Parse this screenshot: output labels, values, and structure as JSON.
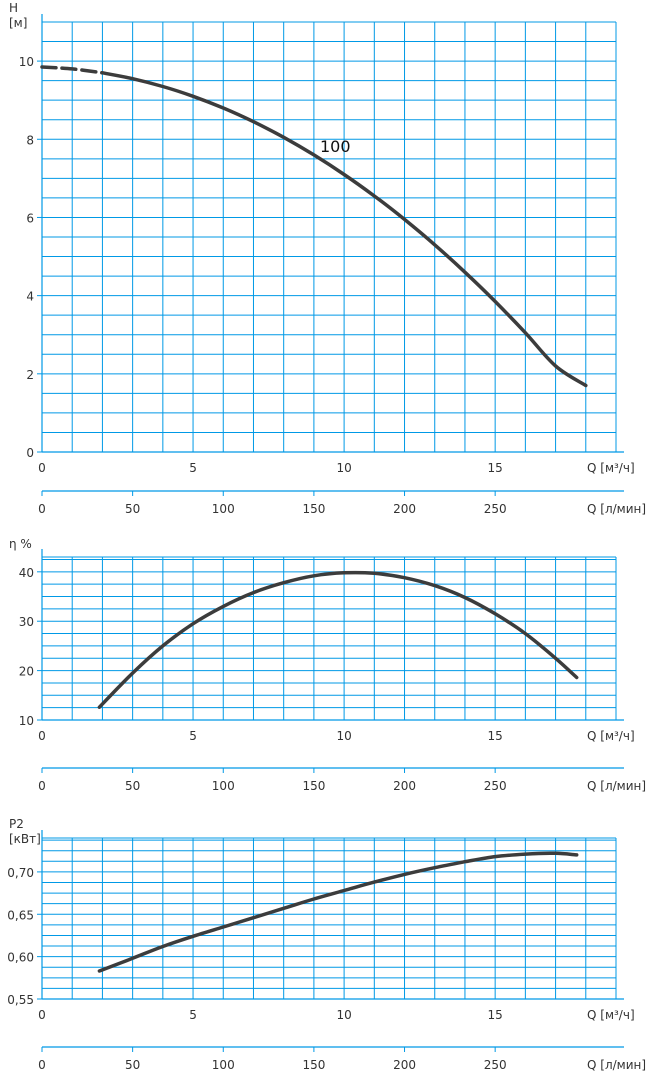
{
  "colors": {
    "grid": "#0099e6",
    "curve": "#3c3c3c",
    "text": "#333333"
  },
  "chart_data": [
    {
      "type": "line",
      "ylabel": "H",
      "yunit": "[м]",
      "ylim": [
        0,
        11
      ],
      "yticks": [
        {
          "v": 0,
          "label": "0"
        },
        {
          "v": 2,
          "label": "2"
        },
        {
          "v": 4,
          "label": "4"
        },
        {
          "v": 6,
          "label": "6"
        },
        {
          "v": 8,
          "label": "8"
        },
        {
          "v": 10,
          "label": "10"
        }
      ],
      "xlim": [
        0,
        19
      ],
      "xticks": [
        {
          "v": 0,
          "label": "0"
        },
        {
          "v": 5,
          "label": "5"
        },
        {
          "v": 10,
          "label": "10"
        },
        {
          "v": 15,
          "label": "15"
        }
      ],
      "xlabel": "Q [м³/ч]",
      "x2ticks": [
        {
          "v": 0,
          "label": "0"
        },
        {
          "v": 50,
          "label": "50"
        },
        {
          "v": 100,
          "label": "100"
        },
        {
          "v": 150,
          "label": "150"
        },
        {
          "v": 200,
          "label": "200"
        },
        {
          "v": 250,
          "label": "250"
        }
      ],
      "x2label": "Q [л/мин]",
      "grid": true,
      "series": [
        {
          "name": "100",
          "dashed_until_x": 2,
          "x": [
            0,
            1,
            2,
            3,
            4,
            5,
            6,
            7,
            8,
            9,
            10,
            11,
            12,
            13,
            14,
            15,
            16,
            17,
            18
          ],
          "y": [
            9.85,
            9.8,
            9.7,
            9.55,
            9.35,
            9.1,
            8.8,
            8.45,
            8.05,
            7.6,
            7.1,
            6.55,
            5.95,
            5.3,
            4.6,
            3.85,
            3.05,
            2.2,
            1.7
          ]
        }
      ]
    },
    {
      "type": "line",
      "ylabel": "η %",
      "ylim": [
        10,
        43
      ],
      "yticks": [
        {
          "v": 10,
          "label": "10"
        },
        {
          "v": 20,
          "label": "20"
        },
        {
          "v": 30,
          "label": "30"
        },
        {
          "v": 40,
          "label": "40"
        }
      ],
      "xlim": [
        0,
        19
      ],
      "xticks": [
        {
          "v": 0,
          "label": "0"
        },
        {
          "v": 5,
          "label": "5"
        },
        {
          "v": 10,
          "label": "10"
        },
        {
          "v": 15,
          "label": "15"
        }
      ],
      "xlabel": "Q [м³/ч]",
      "x2ticks": [
        {
          "v": 0,
          "label": "0"
        },
        {
          "v": 50,
          "label": "50"
        },
        {
          "v": 100,
          "label": "100"
        },
        {
          "v": 150,
          "label": "150"
        },
        {
          "v": 200,
          "label": "200"
        },
        {
          "v": 250,
          "label": "250"
        }
      ],
      "x2label": "Q [л/мин]",
      "grid": true,
      "series": [
        {
          "x": [
            1.9,
            3,
            4,
            5,
            6,
            7,
            8,
            9,
            10,
            11,
            12,
            13,
            14,
            15,
            16,
            17,
            17.7
          ],
          "y": [
            12.6,
            19.5,
            25,
            29.5,
            33,
            35.8,
            37.8,
            39.2,
            39.8,
            39.7,
            38.8,
            37.2,
            34.8,
            31.5,
            27.5,
            22.5,
            18.6
          ]
        }
      ]
    },
    {
      "type": "line",
      "ylabel": "P2",
      "yunit": "[кВт]",
      "ylim": [
        0.55,
        0.74
      ],
      "yticks": [
        {
          "v": 0.55,
          "label": "0,55"
        },
        {
          "v": 0.6,
          "label": "0,60"
        },
        {
          "v": 0.65,
          "label": "0,65"
        },
        {
          "v": 0.7,
          "label": "0,70"
        }
      ],
      "xlim": [
        0,
        19
      ],
      "xticks": [
        {
          "v": 0,
          "label": "0"
        },
        {
          "v": 5,
          "label": "5"
        },
        {
          "v": 10,
          "label": "10"
        },
        {
          "v": 15,
          "label": "15"
        }
      ],
      "xlabel": "Q [м³/ч]",
      "x2ticks": [
        {
          "v": 0,
          "label": "0"
        },
        {
          "v": 50,
          "label": "50"
        },
        {
          "v": 100,
          "label": "100"
        },
        {
          "v": 150,
          "label": "150"
        },
        {
          "v": 200,
          "label": "200"
        },
        {
          "v": 250,
          "label": "250"
        }
      ],
      "x2label": "Q [л/мин]",
      "grid": true,
      "series": [
        {
          "x": [
            1.9,
            3,
            4,
            5,
            6,
            7,
            8,
            9,
            10,
            11,
            12,
            13,
            14,
            15,
            16,
            17,
            17.7
          ],
          "y": [
            0.583,
            0.598,
            0.612,
            0.624,
            0.635,
            0.646,
            0.657,
            0.668,
            0.678,
            0.688,
            0.697,
            0.705,
            0.712,
            0.718,
            0.721,
            0.722,
            0.72
          ]
        }
      ]
    }
  ]
}
